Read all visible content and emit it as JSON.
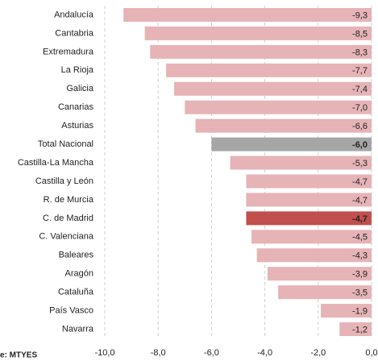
{
  "chart_data": {
    "type": "bar",
    "categories": [
      "Andalucía",
      "Cantabria",
      "Extremadura",
      "La Rioja",
      "Galicia",
      "Canarias",
      "Asturias",
      "Total Nacional",
      "Castilla-La Mancha",
      "Castilla y León",
      "R. de Murcia",
      "C. de Madrid",
      "C. Valenciana",
      "Baleares",
      "Aragón",
      "Cataluña",
      "País Vasco",
      "Navarra"
    ],
    "values": [
      -9.3,
      -8.5,
      -8.3,
      -7.7,
      -7.4,
      -7.0,
      -6.6,
      -6.0,
      -5.3,
      -4.7,
      -4.7,
      -4.7,
      -4.5,
      -4.3,
      -3.9,
      -3.5,
      -1.9,
      -1.2
    ],
    "value_labels": [
      "-9,3",
      "-8,5",
      "-8,3",
      "-7,7",
      "-7,4",
      "-7,0",
      "-6,6",
      "-6,0",
      "-5,3",
      "-4,7",
      "-4,7",
      "-4,7",
      "-4,5",
      "-4,3",
      "-3,9",
      "-3,5",
      "-1,9",
      "-1,2"
    ],
    "color": "#e6b3b6",
    "colors": [
      "#e6b3b6",
      "#e6b3b6",
      "#e6b3b6",
      "#e6b3b6",
      "#e6b3b6",
      "#e6b3b6",
      "#e6b3b6",
      "#a6a6a6",
      "#e6b3b6",
      "#e6b3b6",
      "#e6b3b6",
      "#c0504d",
      "#e6b3b6",
      "#e6b3b6",
      "#e6b3b6",
      "#e6b3b6",
      "#e6b3b6",
      "#e6b3b6"
    ],
    "xlim": [
      -10,
      0
    ],
    "xticks": [
      {
        "value": -10,
        "label": "-10,0"
      },
      {
        "value": -8,
        "label": "-8,0"
      },
      {
        "value": -6,
        "label": "-6,0"
      },
      {
        "value": -4,
        "label": "-4,0"
      },
      {
        "value": -2,
        "label": "-2,0"
      },
      {
        "value": 0,
        "label": "0,0"
      }
    ],
    "grid": true,
    "source": "e: MTYES"
  }
}
